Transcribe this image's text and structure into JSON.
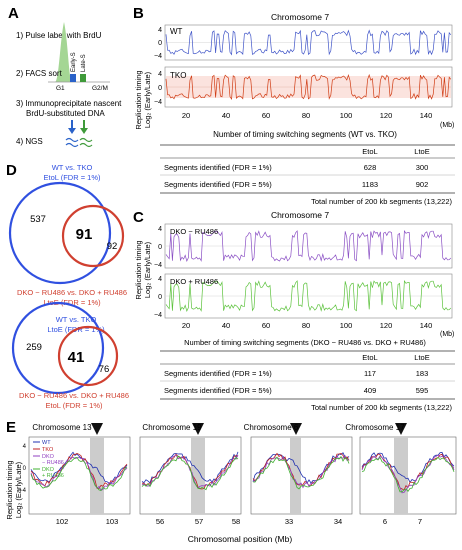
{
  "panels": {
    "A": "A",
    "B": "B",
    "C": "C",
    "D": "D",
    "E": "E"
  },
  "panelA": {
    "steps": [
      "1) Pulse label with BrdU",
      "2) FACS sort",
      "3) Immunoprecipitate nascent",
      "BrdU-substituted DNA",
      "4) NGS"
    ],
    "phases": {
      "g1": "G1",
      "early": "Early-S",
      "late": "Late-S",
      "g2m": "G2/M"
    },
    "colors": {
      "early": "#2a62c9",
      "late": "#3f9a3a",
      "peak": "#9fcf8f"
    }
  },
  "panelB": {
    "title": "Chromosome 7",
    "ylabel1": "Replication timing",
    "ylabel2": "Log₂ (Early/Late)",
    "track1_label": "WT",
    "track2_label": "TKO",
    "xunit": "(Mb)",
    "xticks": [
      "20",
      "40",
      "60",
      "80",
      "100",
      "120",
      "140"
    ],
    "yticks": [
      "4",
      "0",
      "−4"
    ],
    "colors": {
      "track1": "#4055c8",
      "track2": "#d03c14"
    },
    "table_title": "Number of timing switching segments (WT vs. TKO)",
    "table_headers": [
      "EtoL",
      "LtoE"
    ],
    "table_rows": [
      {
        "label": "Segments identified (FDR = 1%)",
        "etol": "628",
        "ltoe": "300"
      },
      {
        "label": "Segments identified (FDR = 5%)",
        "etol": "1183",
        "ltoe": "902"
      }
    ],
    "total": "Total number of 200 kb segments (13,222)"
  },
  "panelC": {
    "title": "Chromosome 7",
    "ylabel1": "Replication timing",
    "ylabel2": "Log₂ (Early/Late)",
    "track1_label": "DKO − RU486",
    "track2_label": "DKO + RU486",
    "xunit": "(Mb)",
    "xticks": [
      "20",
      "40",
      "60",
      "80",
      "100",
      "120",
      "140"
    ],
    "yticks": [
      "4",
      "0",
      "−4"
    ],
    "colors": {
      "track1": "#8a4fc4",
      "track2": "#5cc23c"
    },
    "table_title": "Number of timing switching segments (DKO − RU486 vs. DKO + RU486)",
    "table_headers": [
      "EtoL",
      "LtoE"
    ],
    "table_rows": [
      {
        "label": "Segments identified (FDR = 1%)",
        "etol": "117",
        "ltoe": "183"
      },
      {
        "label": "Segments identified (FDR = 5%)",
        "etol": "409",
        "ltoe": "595"
      }
    ],
    "total": "Total number of 200 kb segments (13,222)"
  },
  "panelD": {
    "venn1": {
      "title1": "WT vs. TKO",
      "title2": "EtoL (FDR = 1%)",
      "left": "537",
      "center": "91",
      "right": "92",
      "bottom1": "DKO − RU486 vs. DKO + RU486",
      "bottom2": "LtoE (FDR = 1%)"
    },
    "venn2": {
      "title1": "WT vs. TKO",
      "title2": "LtoE (FDR = 1%)",
      "left": "259",
      "center": "41",
      "right": "76",
      "bottom1": "DKO − RU486 vs. DKO + RU486",
      "bottom2": "EtoL (FDR = 1%)"
    },
    "colors": {
      "blue": "#3050e0",
      "red": "#d04030"
    }
  },
  "panelE": {
    "ylabel1": "Replication timing",
    "ylabel2": "Log₂ (Early/Late)",
    "xlabel": "Chromosomal position (Mb)",
    "legend": [
      {
        "name": "WT",
        "color": "#2030b0"
      },
      {
        "name": "TKO",
        "color": "#c02020"
      },
      {
        "name": "DKO",
        "color": "#9040c0"
      },
      {
        "name": "− RU486",
        "color": "#9040c0"
      },
      {
        "name": "DKO",
        "color": "#40b030"
      },
      {
        "name": "+ RU486",
        "color": "#40b030"
      }
    ],
    "subplots": [
      {
        "title": "Chromosome 13",
        "ticks": [
          "102",
          "103"
        ]
      },
      {
        "title": "Chromosome 19",
        "ticks": [
          "56",
          "57",
          "58"
        ]
      },
      {
        "title": "Chromosome 6",
        "ticks": [
          "33",
          "34"
        ]
      },
      {
        "title": "Chromosome 17",
        "ticks": [
          "6",
          "7"
        ]
      }
    ],
    "yticks": [
      "4",
      "2",
      "0",
      "−2",
      "−4"
    ]
  }
}
